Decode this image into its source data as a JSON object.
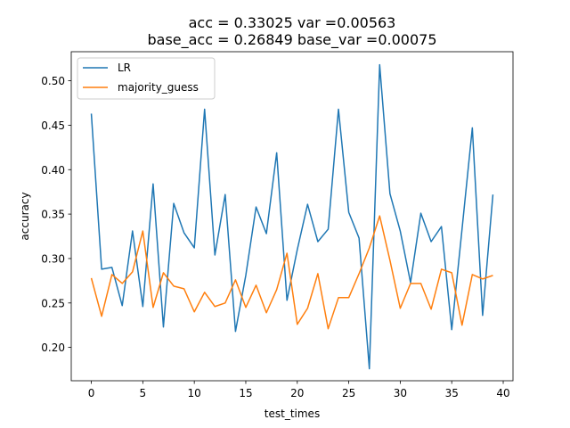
{
  "chart_data": {
    "type": "line",
    "title": [
      "acc = 0.33025  var =0.00563",
      "base_acc = 0.26849  base_var =0.00075"
    ],
    "xlabel": "test_times",
    "ylabel": "accuracy",
    "xlim": [
      -1.95,
      40.95
    ],
    "ylim": [
      0.1625,
      0.5327
    ],
    "xticks": [
      0,
      5,
      10,
      15,
      20,
      25,
      30,
      35,
      40
    ],
    "yticks": [
      0.2,
      0.25,
      0.3,
      0.35,
      0.4,
      0.45,
      0.5
    ],
    "ytick_labels": [
      "0.20",
      "0.25",
      "0.30",
      "0.35",
      "0.40",
      "0.45",
      "0.50"
    ],
    "grid": false,
    "legend_position": "top-left",
    "x": [
      0,
      1,
      2,
      3,
      4,
      5,
      6,
      7,
      8,
      9,
      10,
      11,
      12,
      13,
      14,
      15,
      16,
      17,
      18,
      19,
      20,
      21,
      22,
      23,
      24,
      25,
      26,
      27,
      28,
      29,
      30,
      31,
      32,
      33,
      34,
      35,
      36,
      37,
      38,
      39
    ],
    "series": [
      {
        "name": "LR",
        "color": "#1f77b4",
        "values": [
          0.463,
          0.288,
          0.29,
          0.247,
          0.331,
          0.246,
          0.384,
          0.223,
          0.362,
          0.329,
          0.312,
          0.468,
          0.304,
          0.372,
          0.218,
          0.281,
          0.358,
          0.328,
          0.419,
          0.253,
          0.31,
          0.361,
          0.319,
          0.333,
          0.468,
          0.352,
          0.323,
          0.176,
          0.518,
          0.373,
          0.331,
          0.273,
          0.351,
          0.319,
          0.336,
          0.22,
          0.333,
          0.447,
          0.236,
          0.372
        ]
      },
      {
        "name": "majority_guess",
        "color": "#ff7f0e",
        "values": [
          0.278,
          0.235,
          0.282,
          0.272,
          0.285,
          0.331,
          0.245,
          0.284,
          0.269,
          0.266,
          0.24,
          0.262,
          0.246,
          0.25,
          0.276,
          0.245,
          0.27,
          0.239,
          0.265,
          0.306,
          0.226,
          0.244,
          0.283,
          0.221,
          0.256,
          0.256,
          0.283,
          0.312,
          0.348,
          0.298,
          0.244,
          0.272,
          0.272,
          0.243,
          0.288,
          0.284,
          0.225,
          0.282,
          0.277,
          0.281
        ]
      }
    ]
  }
}
